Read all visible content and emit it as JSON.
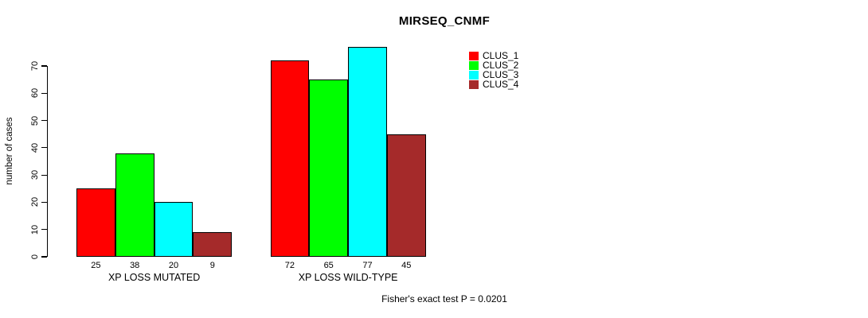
{
  "title": "MIRSEQ_CNMF",
  "chart_data": {
    "type": "bar",
    "title": "MIRSEQ_CNMF",
    "ylabel": "number of cases",
    "xlabel": "",
    "ylim": [
      0,
      70
    ],
    "yticks": [
      0,
      10,
      20,
      30,
      40,
      50,
      60,
      70
    ],
    "categories": [
      "XP LOSS MUTATED",
      "XP LOSS WILD-TYPE"
    ],
    "series": [
      {
        "name": "CLUS_1",
        "color": "#FF0000",
        "values": [
          25,
          72
        ]
      },
      {
        "name": "CLUS_2",
        "color": "#00FF00",
        "values": [
          38,
          65
        ]
      },
      {
        "name": "CLUS_3",
        "color": "#00FFFF",
        "values": [
          20,
          77
        ]
      },
      {
        "name": "CLUS_4",
        "color": "#A52A2A",
        "values": [
          9,
          45
        ]
      }
    ],
    "bar_value_labels": [
      [
        25,
        38,
        20,
        9
      ],
      [
        72,
        65,
        77,
        45
      ]
    ],
    "legend_position": "top-right",
    "grid": false,
    "annotation": "Fisher's exact test P = 0.0201"
  }
}
